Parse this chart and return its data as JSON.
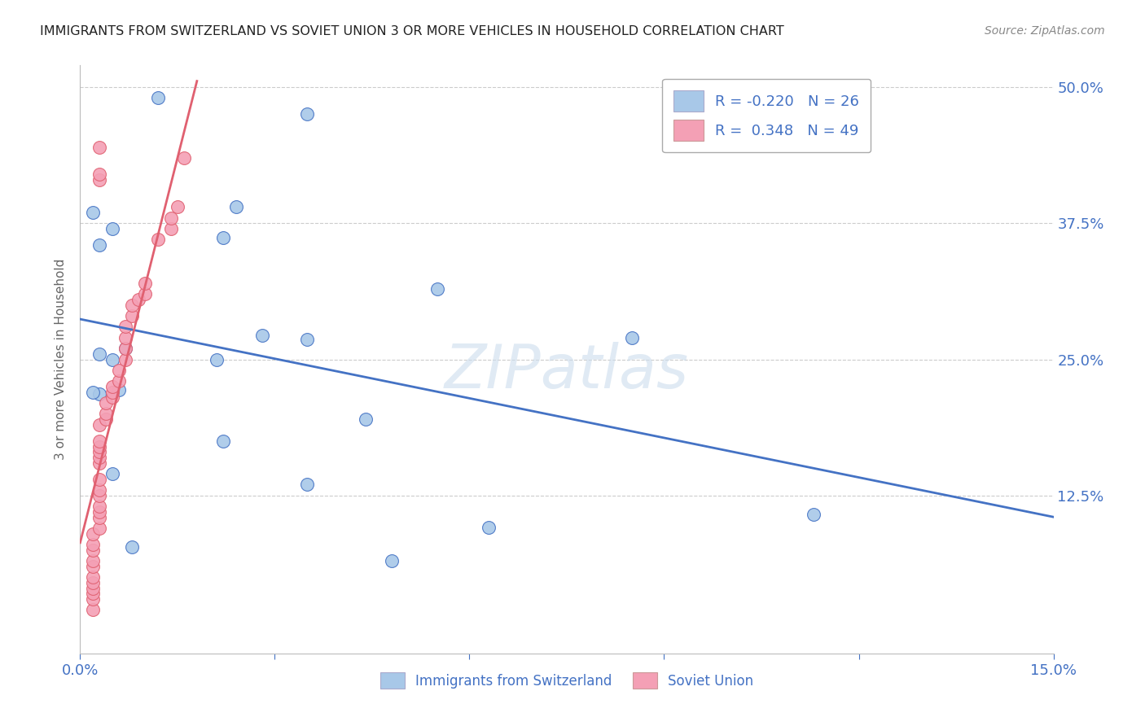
{
  "title": "IMMIGRANTS FROM SWITZERLAND VS SOVIET UNION 3 OR MORE VEHICLES IN HOUSEHOLD CORRELATION CHART",
  "source": "Source: ZipAtlas.com",
  "ylabel": "3 or more Vehicles in Household",
  "watermark": "ZIPatlas",
  "xlim": [
    0.0,
    0.15
  ],
  "ylim": [
    -0.01,
    0.52
  ],
  "plot_ylim": [
    0.0,
    0.5
  ],
  "ytick_vals_right": [
    0.5,
    0.375,
    0.25,
    0.125
  ],
  "ytick_labels_right": [
    "50.0%",
    "37.5%",
    "25.0%",
    "12.5%"
  ],
  "xtick_vals": [
    0.0,
    0.03,
    0.06,
    0.09,
    0.12,
    0.15
  ],
  "legend_r_switzerland": "-0.220",
  "legend_n_switzerland": "26",
  "legend_r_soviet": " 0.348",
  "legend_n_soviet": "49",
  "color_switzerland": "#a8c8e8",
  "color_soviet": "#f4a0b5",
  "color_trend_switzerland": "#4472C4",
  "color_trend_soviet": "#E06070",
  "color_axis_labels": "#4472C4",
  "color_title": "#222222",
  "color_gridline": "#cccccc",
  "switzerland_x": [
    0.012,
    0.035,
    0.002,
    0.024,
    0.003,
    0.005,
    0.007,
    0.022,
    0.035,
    0.028,
    0.055,
    0.085,
    0.003,
    0.044,
    0.021,
    0.003,
    0.006,
    0.113,
    0.035,
    0.063,
    0.005,
    0.048,
    0.002,
    0.022,
    0.005,
    0.008
  ],
  "switzerland_y": [
    0.49,
    0.475,
    0.385,
    0.39,
    0.355,
    0.37,
    0.26,
    0.362,
    0.268,
    0.272,
    0.315,
    0.27,
    0.218,
    0.195,
    0.25,
    0.255,
    0.222,
    0.108,
    0.135,
    0.096,
    0.145,
    0.065,
    0.22,
    0.175,
    0.25,
    0.078
  ],
  "soviet_x": [
    0.002,
    0.002,
    0.002,
    0.002,
    0.002,
    0.002,
    0.002,
    0.002,
    0.002,
    0.002,
    0.002,
    0.003,
    0.003,
    0.003,
    0.003,
    0.003,
    0.003,
    0.003,
    0.003,
    0.003,
    0.003,
    0.003,
    0.003,
    0.003,
    0.004,
    0.004,
    0.004,
    0.005,
    0.005,
    0.005,
    0.006,
    0.006,
    0.007,
    0.007,
    0.007,
    0.007,
    0.008,
    0.008,
    0.009,
    0.01,
    0.01,
    0.012,
    0.014,
    0.014,
    0.015,
    0.016,
    0.003,
    0.003,
    0.003
  ],
  "soviet_y": [
    0.02,
    0.03,
    0.035,
    0.04,
    0.045,
    0.05,
    0.06,
    0.065,
    0.075,
    0.08,
    0.09,
    0.095,
    0.105,
    0.11,
    0.115,
    0.125,
    0.13,
    0.14,
    0.155,
    0.16,
    0.165,
    0.17,
    0.175,
    0.19,
    0.195,
    0.2,
    0.21,
    0.215,
    0.22,
    0.225,
    0.23,
    0.24,
    0.25,
    0.26,
    0.27,
    0.28,
    0.29,
    0.3,
    0.305,
    0.31,
    0.32,
    0.36,
    0.37,
    0.38,
    0.39,
    0.435,
    0.415,
    0.42,
    0.445
  ]
}
